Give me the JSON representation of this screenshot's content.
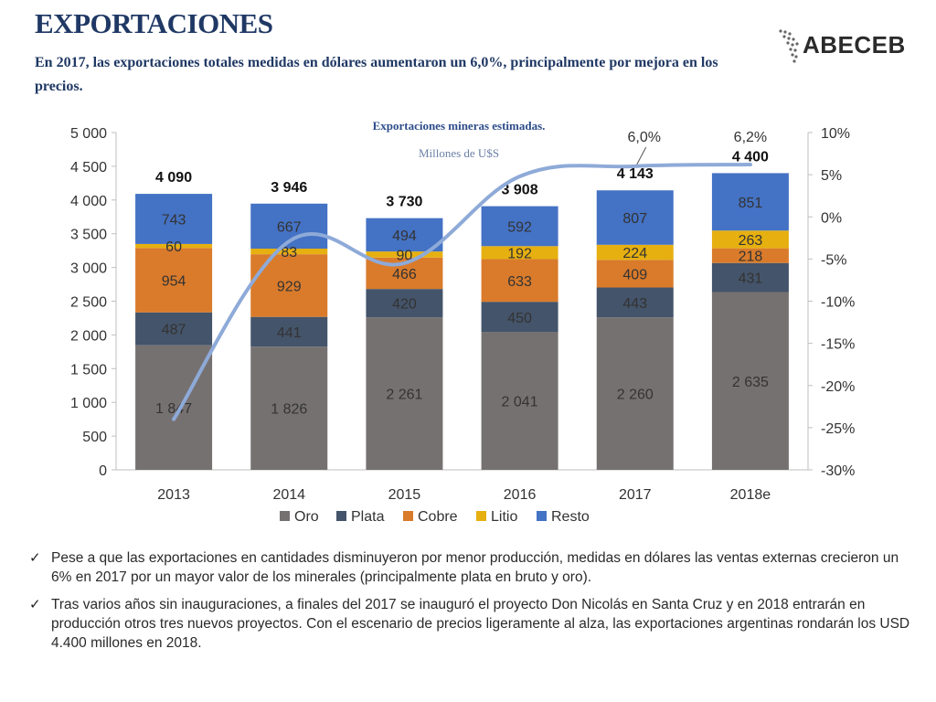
{
  "header": {
    "title": "EXPORTACIONES",
    "subtitle": "En 2017, las exportaciones totales medidas en dólares aumentaron un 6,0%, principalmente por mejora en los precios."
  },
  "logo": {
    "text": "ABECEB"
  },
  "notes": [
    "Pese a que las exportaciones en cantidades disminuyeron por menor producción, medidas en dólares las ventas externas crecieron un 6% en 2017 por un mayor valor de los minerales (principalmente plata en bruto y oro).",
    "Tras varios años sin inauguraciones, a finales del  2017 se inauguró el proyecto Don Nicolás en Santa Cruz y en 2018 entrarán en producción otros tres nuevos proyectos. Con el escenario de precios ligeramente al alza, las exportaciones argentinas rondarán los USD 4.400 millones en 2018."
  ],
  "chart_data": {
    "type": "bar",
    "stacked": true,
    "title": "Exportaciones mineras estimadas.",
    "subtitle": "Millones de U$S",
    "categories": [
      "2013",
      "2014",
      "2015",
      "2016",
      "2017",
      "2018e"
    ],
    "series": [
      {
        "name": "Oro",
        "color": "#767171",
        "values": [
          1847,
          1826,
          2261,
          2041,
          2260,
          2635
        ],
        "labels": [
          "1 847",
          "1 826",
          "2 261",
          "2 041",
          "2 260",
          "2 635"
        ]
      },
      {
        "name": "Plata",
        "color": "#44546a",
        "values": [
          487,
          441,
          420,
          450,
          443,
          431
        ],
        "labels": [
          "487",
          "441",
          "420",
          "450",
          "443",
          "431"
        ]
      },
      {
        "name": "Cobre",
        "color": "#d97b2b",
        "values": [
          954,
          929,
          466,
          633,
          409,
          218
        ],
        "labels": [
          "954",
          "929",
          "466",
          "633",
          "409",
          "218"
        ]
      },
      {
        "name": "Litio",
        "color": "#e6b010",
        "values": [
          60,
          83,
          90,
          192,
          224,
          263
        ],
        "labels": [
          "60",
          "83",
          "90",
          "192",
          "224",
          "263"
        ]
      },
      {
        "name": "Resto",
        "color": "#4472c4",
        "values": [
          743,
          667,
          494,
          592,
          807,
          851
        ],
        "labels": [
          "743",
          "667",
          "494",
          "592",
          "807",
          "851"
        ]
      }
    ],
    "totals": [
      4090,
      3946,
      3730,
      3908,
      4143,
      4400
    ],
    "total_labels": [
      "4 090",
      "3 946",
      "3 730",
      "3 908",
      "4 143",
      "4 400"
    ],
    "growth_line": {
      "color": "#8eaad8",
      "values": [
        -24,
        -2.9,
        -5.5,
        4.8,
        6.0,
        6.2
      ],
      "annotations": [
        {
          "index": 4,
          "text": "6,0%"
        },
        {
          "index": 5,
          "text": "6,2%"
        }
      ]
    },
    "y_left": {
      "min": 0,
      "max": 5000,
      "step": 500,
      "tick_labels": [
        "0",
        "500",
        "1 000",
        "1 500",
        "2 000",
        "2 500",
        "3 000",
        "3 500",
        "4 000",
        "4 500",
        "5 000"
      ]
    },
    "y_right": {
      "min": -30,
      "max": 10,
      "step": 5,
      "tick_labels": [
        "-30%",
        "-25%",
        "-20%",
        "-15%",
        "-10%",
        "-5%",
        "0%",
        "5%",
        "10%"
      ]
    },
    "legend_position": "bottom",
    "grid": false
  }
}
